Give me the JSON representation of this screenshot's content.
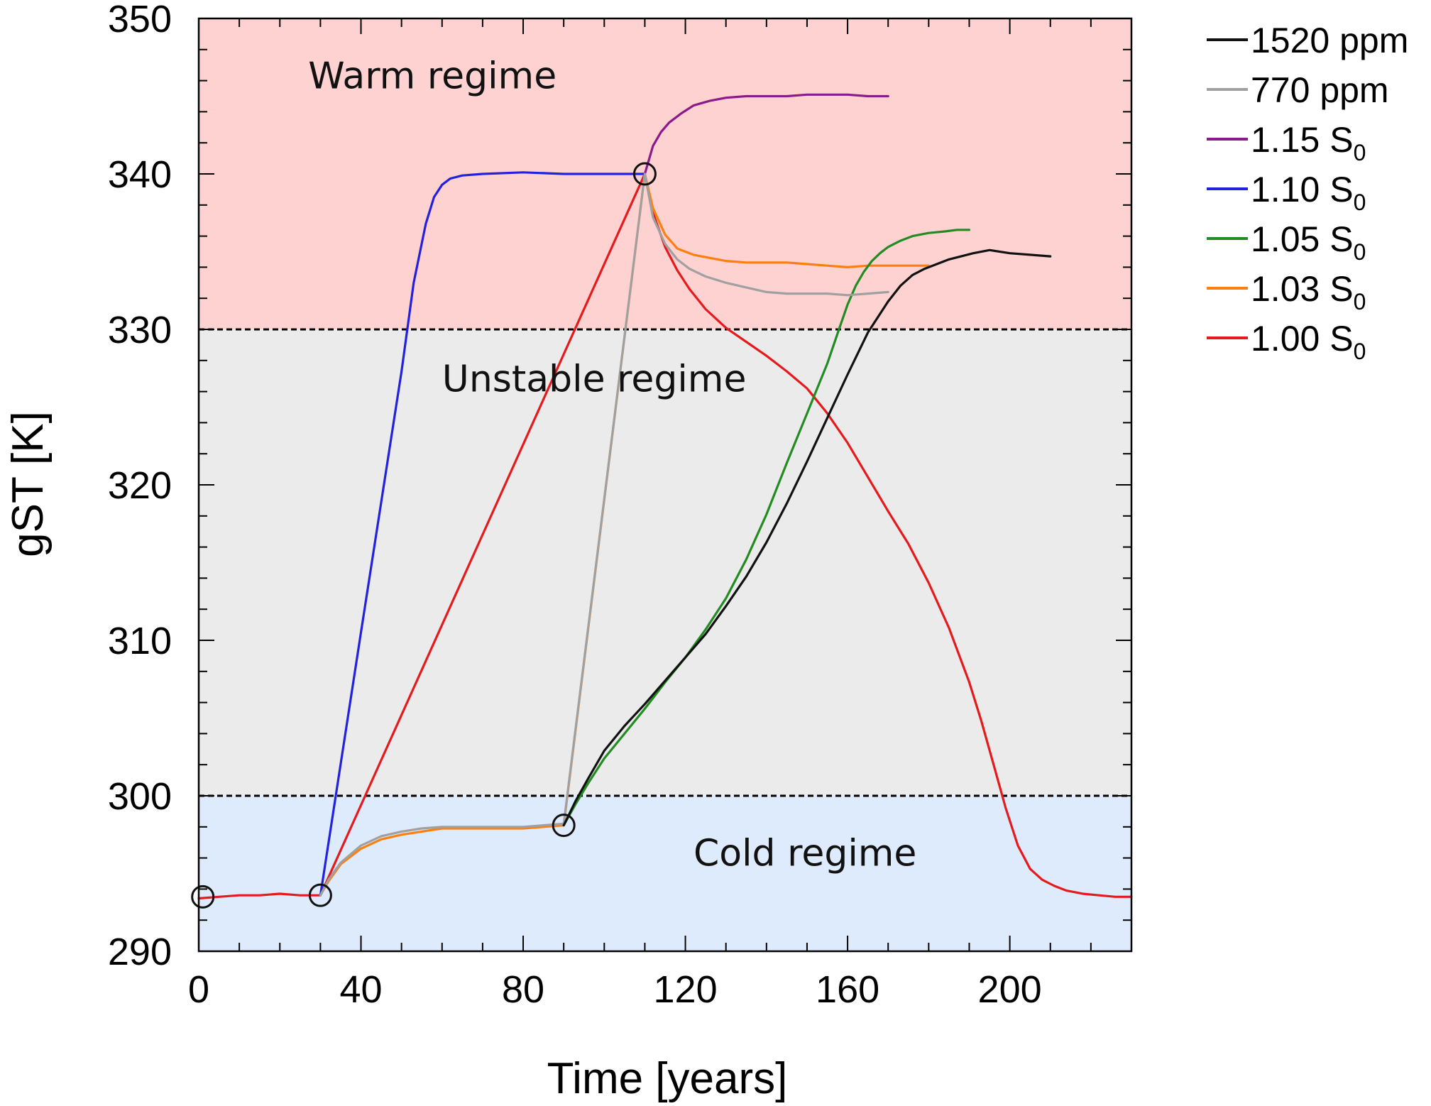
{
  "chart_data": {
    "type": "line",
    "xlabel": "Time [years]",
    "ylabel": "gST [K]",
    "xlim": [
      0,
      230
    ],
    "ylim": [
      290,
      350
    ],
    "x_ticks": [
      0,
      40,
      80,
      120,
      160,
      200
    ],
    "y_ticks": [
      290,
      300,
      310,
      320,
      330,
      340,
      350
    ],
    "x_ticks_minor_step": 10,
    "y_ticks_minor_step": 2,
    "regions": [
      {
        "label": "Warm regime",
        "y_from": 330,
        "y_to": 350,
        "color": "#ffd2d2",
        "label_at": [
          27,
          345.5
        ]
      },
      {
        "label": "Unstable regime",
        "y_from": 300,
        "y_to": 330,
        "color": "#ebebeb",
        "label_at": [
          60,
          326
        ]
      },
      {
        "label": "Cold regime",
        "y_from": 290,
        "y_to": 300,
        "color": "#deebfc",
        "label_at": [
          122,
          295.5
        ]
      }
    ],
    "thresholds": [
      300,
      330
    ],
    "markers": [
      {
        "x": 1,
        "y": 293.5
      },
      {
        "x": 30,
        "y": 293.6
      },
      {
        "x": 90,
        "y": 298.1
      },
      {
        "x": 110,
        "y": 340
      }
    ],
    "legend": {
      "position": "right"
    },
    "series": [
      {
        "name": "1.00 S0",
        "name_main": "1.00 S",
        "name_sub": "0",
        "color": "#e41a1c",
        "x": [
          0,
          5,
          10,
          15,
          20,
          25,
          30,
          110,
          112,
          115,
          118,
          121,
          125,
          130,
          135,
          140,
          145,
          150,
          155,
          160,
          165,
          170,
          175,
          180,
          185,
          190,
          193,
          196,
          199,
          202,
          205,
          208,
          211,
          214,
          218,
          222,
          226,
          230
        ],
        "y": [
          293.4,
          293.5,
          293.6,
          293.6,
          293.7,
          293.6,
          293.6,
          340,
          337.5,
          335.3,
          333.8,
          332.6,
          331.3,
          330.1,
          329.2,
          328.3,
          327.3,
          326.2,
          324.6,
          322.7,
          320.5,
          318.3,
          316.2,
          313.7,
          310.8,
          307.3,
          304.8,
          302,
          299.2,
          296.8,
          295.3,
          294.6,
          294.2,
          293.9,
          293.7,
          293.6,
          293.5,
          293.5
        ]
      },
      {
        "name": "1.03 S0",
        "name_main": "1.03 S",
        "name_sub": "0",
        "color": "#ff7f0e",
        "x": [
          30,
          32,
          35,
          40,
          45,
          50,
          55,
          60,
          70,
          80,
          90,
          110,
          112,
          115,
          118,
          122,
          126,
          130,
          135,
          140,
          145,
          150,
          155,
          160,
          165,
          170,
          175,
          180
        ],
        "y": [
          293.6,
          294.5,
          295.6,
          296.6,
          297.2,
          297.5,
          297.7,
          297.9,
          297.9,
          297.9,
          298.1,
          340,
          337.8,
          336.1,
          335.2,
          334.8,
          334.6,
          334.4,
          334.3,
          334.3,
          334.3,
          334.2,
          334.1,
          334,
          334.1,
          334.1,
          334.1,
          334.1
        ]
      },
      {
        "name": "1.05 S0",
        "name_main": "1.05 S",
        "name_sub": "0",
        "color": "#228b22",
        "x": [
          90,
          93,
          96,
          100,
          105,
          110,
          115,
          120,
          125,
          130,
          135,
          140,
          145,
          150,
          155,
          158,
          160,
          162,
          164,
          166,
          168,
          170,
          173,
          176,
          180,
          184,
          187,
          190
        ],
        "y": [
          298.1,
          299.5,
          300.8,
          302.4,
          304,
          305.6,
          307.3,
          308.9,
          310.7,
          312.7,
          315.2,
          318.1,
          321.4,
          324.6,
          327.8,
          330.1,
          331.6,
          332.8,
          333.7,
          334.4,
          334.9,
          335.3,
          335.7,
          336,
          336.2,
          336.3,
          336.4,
          336.4
        ]
      },
      {
        "name": "1.10 S0",
        "name_main": "1.10 S",
        "name_sub": "0",
        "color": "#2121de",
        "x": [
          30,
          40,
          50,
          53,
          56,
          58,
          60,
          62,
          65,
          70,
          80,
          90,
          100,
          110
        ],
        "y": [
          293.6,
          310.5,
          327.3,
          333,
          336.8,
          338.5,
          339.3,
          339.7,
          339.9,
          340,
          340.1,
          340,
          340,
          340
        ]
      },
      {
        "name": "1.15 S0",
        "name_main": "1.15 S",
        "name_sub": "0",
        "color": "#8b1a8b",
        "x": [
          110,
          112,
          114,
          116,
          119,
          122,
          126,
          130,
          135,
          140,
          145,
          150,
          155,
          160,
          165,
          170
        ],
        "y": [
          340,
          341.8,
          342.7,
          343.3,
          343.9,
          344.4,
          344.7,
          344.9,
          345,
          345,
          345,
          345.1,
          345.1,
          345.1,
          345,
          345
        ]
      },
      {
        "name": "770 ppm",
        "name_main": " 770 ppm",
        "name_sub": "",
        "color": "#a0a0a0",
        "x": [
          30,
          32,
          35,
          40,
          45,
          50,
          55,
          60,
          70,
          80,
          90,
          110,
          112,
          115,
          118,
          121,
          125,
          130,
          135,
          140,
          145,
          150,
          155,
          160,
          165,
          170
        ],
        "y": [
          293.6,
          294.6,
          295.7,
          296.8,
          297.4,
          297.7,
          297.9,
          298,
          298,
          298,
          298.2,
          340,
          337.2,
          335.5,
          334.5,
          333.9,
          333.4,
          333,
          332.7,
          332.4,
          332.3,
          332.3,
          332.3,
          332.2,
          332.3,
          332.4
        ]
      },
      {
        "name": "1520 ppm",
        "name_main": "1520 ppm",
        "name_sub": "",
        "color": "#111111",
        "x": [
          90,
          93,
          96,
          100,
          105,
          110,
          115,
          120,
          125,
          130,
          135,
          140,
          145,
          150,
          155,
          160,
          165,
          170,
          173,
          176,
          179,
          182,
          185,
          188,
          191,
          195,
          200,
          205,
          210
        ],
        "y": [
          298.1,
          299.7,
          301.1,
          302.9,
          304.5,
          305.9,
          307.4,
          308.9,
          310.4,
          312.2,
          314.1,
          316.3,
          318.8,
          321.5,
          324.3,
          327.1,
          329.8,
          331.8,
          332.8,
          333.5,
          333.9,
          334.2,
          334.5,
          334.7,
          334.9,
          335.1,
          334.9,
          334.8,
          334.7
        ]
      }
    ]
  }
}
